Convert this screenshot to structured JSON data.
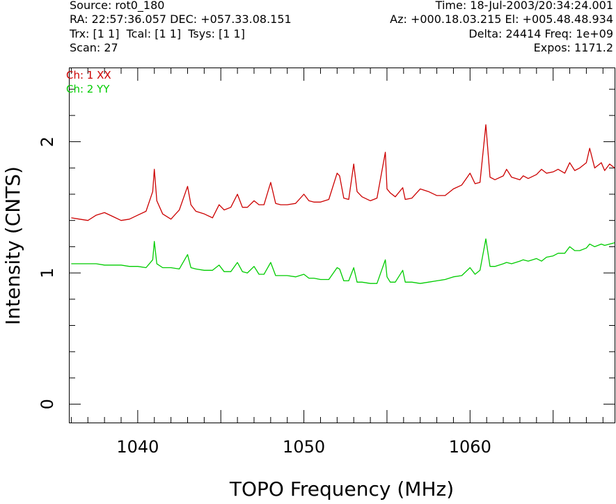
{
  "header": {
    "source": "Source: rot0_180",
    "time": "Time: 18-Jul-2003/20:34:24.001",
    "radec": "RA: 22:57:36.057 DEC: +057.33.08.151",
    "azel": "Az: +000.18.03.215 El: +005.48.48.934",
    "trx": "Trx: [1 1]  Tcal: [1 1]  Tsys: [1 1]",
    "delta": "Delta: 24414 Freq: 1e+09",
    "scan": "Scan: 27",
    "expos": "Expos: 1171.2"
  },
  "chart_data": {
    "type": "line",
    "title": "",
    "xlabel": "TOPO Frequency (MHz)",
    "ylabel": "Intensity (CNTS)",
    "xlim": [
      1035.9,
      1068.7
    ],
    "ylim": [
      -0.14,
      2.56
    ],
    "x_ticks": [
      1040,
      1050,
      1060
    ],
    "y_ticks": [
      0,
      1,
      2
    ],
    "legend_position": "top-left",
    "series": [
      {
        "name": "Ch: 1 XX",
        "color": "#cc0000",
        "x": [
          1036.0,
          1036.5,
          1037.0,
          1037.5,
          1038.0,
          1038.5,
          1039.0,
          1039.5,
          1040.0,
          1040.5,
          1040.9,
          1041.0,
          1041.15,
          1041.5,
          1042.0,
          1042.5,
          1043.0,
          1043.2,
          1043.5,
          1044.0,
          1044.5,
          1044.9,
          1045.2,
          1045.6,
          1046.0,
          1046.3,
          1046.6,
          1047.0,
          1047.3,
          1047.6,
          1048.0,
          1048.3,
          1048.6,
          1049.0,
          1049.5,
          1050.0,
          1050.3,
          1050.6,
          1051.0,
          1051.5,
          1052.0,
          1052.15,
          1052.4,
          1052.7,
          1053.0,
          1053.2,
          1053.5,
          1054.0,
          1054.4,
          1054.9,
          1055.0,
          1055.2,
          1055.5,
          1055.95,
          1056.1,
          1056.5,
          1057.0,
          1057.5,
          1058.0,
          1058.5,
          1059.0,
          1059.5,
          1060.0,
          1060.3,
          1060.6,
          1060.95,
          1061.2,
          1061.5,
          1062.0,
          1062.2,
          1062.5,
          1063.0,
          1063.2,
          1063.5,
          1064.0,
          1064.3,
          1064.6,
          1065.0,
          1065.3,
          1065.7,
          1066.0,
          1066.3,
          1066.6,
          1067.0,
          1067.2,
          1067.5,
          1067.9,
          1068.1,
          1068.4,
          1068.7
        ],
        "values": [
          1.42,
          1.41,
          1.4,
          1.44,
          1.46,
          1.43,
          1.4,
          1.41,
          1.44,
          1.47,
          1.62,
          1.79,
          1.55,
          1.45,
          1.41,
          1.48,
          1.66,
          1.52,
          1.47,
          1.45,
          1.42,
          1.52,
          1.48,
          1.5,
          1.6,
          1.5,
          1.5,
          1.55,
          1.52,
          1.52,
          1.69,
          1.53,
          1.52,
          1.52,
          1.53,
          1.6,
          1.55,
          1.54,
          1.54,
          1.56,
          1.76,
          1.74,
          1.57,
          1.56,
          1.83,
          1.62,
          1.58,
          1.55,
          1.57,
          1.92,
          1.64,
          1.61,
          1.58,
          1.65,
          1.56,
          1.57,
          1.64,
          1.62,
          1.59,
          1.59,
          1.64,
          1.67,
          1.76,
          1.68,
          1.69,
          2.13,
          1.73,
          1.71,
          1.74,
          1.79,
          1.73,
          1.71,
          1.74,
          1.72,
          1.75,
          1.79,
          1.76,
          1.77,
          1.79,
          1.76,
          1.84,
          1.78,
          1.8,
          1.84,
          1.95,
          1.8,
          1.84,
          1.78,
          1.83,
          1.8
        ]
      },
      {
        "name": "Ch: 2 YY",
        "color": "#00cc00",
        "x": [
          1036.0,
          1036.5,
          1037.0,
          1037.5,
          1038.0,
          1038.5,
          1039.0,
          1039.5,
          1040.0,
          1040.5,
          1040.9,
          1041.0,
          1041.15,
          1041.5,
          1042.0,
          1042.5,
          1043.0,
          1043.2,
          1043.5,
          1044.0,
          1044.5,
          1044.9,
          1045.2,
          1045.6,
          1046.0,
          1046.3,
          1046.6,
          1047.0,
          1047.3,
          1047.6,
          1048.0,
          1048.3,
          1048.6,
          1049.0,
          1049.5,
          1050.0,
          1050.3,
          1050.6,
          1051.0,
          1051.5,
          1052.0,
          1052.15,
          1052.4,
          1052.7,
          1053.0,
          1053.2,
          1053.5,
          1054.0,
          1054.4,
          1054.9,
          1055.0,
          1055.2,
          1055.5,
          1055.95,
          1056.1,
          1056.5,
          1057.0,
          1057.5,
          1058.0,
          1058.5,
          1059.0,
          1059.5,
          1060.0,
          1060.3,
          1060.6,
          1060.95,
          1061.2,
          1061.5,
          1062.0,
          1062.2,
          1062.5,
          1063.0,
          1063.2,
          1063.5,
          1064.0,
          1064.3,
          1064.6,
          1065.0,
          1065.3,
          1065.7,
          1066.0,
          1066.3,
          1066.6,
          1067.0,
          1067.2,
          1067.5,
          1067.9,
          1068.1,
          1068.4,
          1068.7
        ],
        "values": [
          1.07,
          1.07,
          1.07,
          1.07,
          1.06,
          1.06,
          1.06,
          1.05,
          1.05,
          1.04,
          1.1,
          1.24,
          1.07,
          1.04,
          1.04,
          1.03,
          1.14,
          1.04,
          1.03,
          1.02,
          1.02,
          1.06,
          1.01,
          1.01,
          1.08,
          1.01,
          1.0,
          1.05,
          0.99,
          0.99,
          1.08,
          0.98,
          0.98,
          0.98,
          0.97,
          0.99,
          0.96,
          0.96,
          0.95,
          0.95,
          1.04,
          1.03,
          0.94,
          0.94,
          1.04,
          0.93,
          0.93,
          0.92,
          0.92,
          1.1,
          0.97,
          0.93,
          0.93,
          1.02,
          0.93,
          0.93,
          0.92,
          0.93,
          0.94,
          0.95,
          0.97,
          0.98,
          1.04,
          0.99,
          1.02,
          1.26,
          1.05,
          1.05,
          1.07,
          1.08,
          1.07,
          1.09,
          1.1,
          1.09,
          1.11,
          1.09,
          1.12,
          1.13,
          1.15,
          1.15,
          1.2,
          1.17,
          1.17,
          1.19,
          1.22,
          1.2,
          1.22,
          1.21,
          1.22,
          1.23
        ]
      }
    ]
  }
}
